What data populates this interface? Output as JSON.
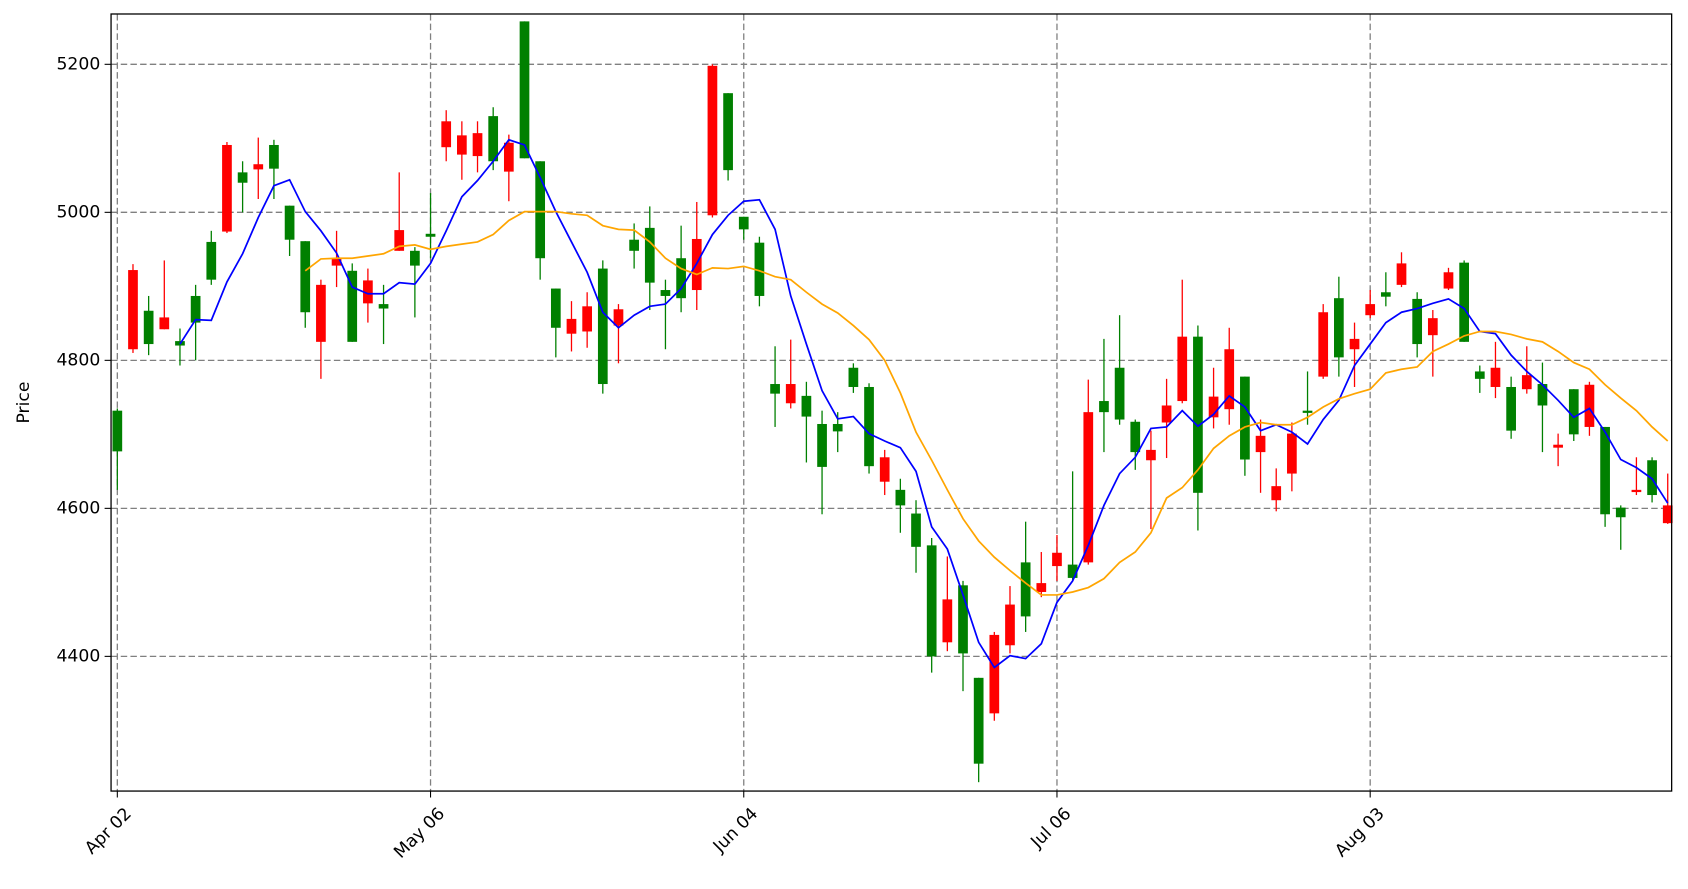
{
  "chart_data": {
    "type": "candlestick",
    "ylabel": "Price",
    "categories": [
      "Apr 02",
      null,
      null,
      null,
      null,
      null,
      null,
      null,
      null,
      null,
      null,
      null,
      null,
      null,
      null,
      null,
      null,
      null,
      null,
      null,
      "May 06",
      null,
      null,
      null,
      null,
      null,
      null,
      null,
      null,
      null,
      null,
      null,
      null,
      null,
      null,
      null,
      null,
      null,
      null,
      null,
      "Jun 04",
      null,
      null,
      null,
      null,
      null,
      null,
      null,
      null,
      null,
      null,
      null,
      null,
      null,
      null,
      null,
      null,
      null,
      null,
      null,
      "Jul 06",
      null,
      null,
      null,
      null,
      null,
      null,
      null,
      null,
      null,
      null,
      null,
      null,
      null,
      null,
      null,
      null,
      null,
      null,
      null,
      "Aug 03",
      null,
      null,
      null,
      null,
      null,
      null,
      null,
      null,
      null,
      null,
      null,
      null,
      null,
      null,
      null,
      null,
      null,
      null,
      null
    ],
    "open": [
      4732,
      4815,
      4867,
      4842,
      4826,
      4887,
      4960,
      4974,
      5054,
      5058,
      5091,
      5009,
      4961,
      4825,
      4928,
      4921,
      4877,
      4876,
      4948,
      4948,
      4971,
      5088,
      5078,
      5076,
      5130,
      5055,
      5258,
      5069,
      4897,
      4836,
      4839,
      4924,
      4847,
      4963,
      4979,
      4895,
      4938,
      4895,
      4996,
      5161,
      4994,
      4959,
      4768,
      4742,
      4752,
      4714,
      4714,
      4790,
      4764,
      4636,
      4625,
      4593,
      4550,
      4419,
      4496,
      4371,
      4323,
      4415,
      4527,
      4487,
      4522,
      4524,
      4527,
      4745,
      4790,
      4717,
      4665,
      4716,
      4745,
      4832,
      4723,
      4734,
      4778,
      4676,
      4611,
      4647,
      4732,
      4778,
      4884,
      4815,
      4861,
      4892,
      4902,
      4883,
      4834,
      4897,
      4932,
      4785,
      4764,
      4764,
      4761,
      4768,
      4682,
      4761,
      4710,
      4710,
      4601,
      4622,
      4665,
      4580
    ],
    "high": [
      4735,
      4930,
      4887,
      4935,
      4843,
      4902,
      4975,
      5095,
      5069,
      5101,
      5098,
      5009,
      4961,
      4909,
      4975,
      4931,
      4924,
      4902,
      5054,
      4953,
      5026,
      5138,
      5123,
      5123,
      5142,
      5105,
      5258,
      5069,
      4897,
      4880,
      4892,
      4935,
      4876,
      4985,
      5008,
      4909,
      4982,
      5014,
      5200,
      5161,
      4994,
      4967,
      4819,
      4828,
      4771,
      4732,
      4730,
      4796,
      4769,
      4679,
      4640,
      4611,
      4560,
      4535,
      4502,
      4371,
      4433,
      4495,
      4582,
      4541,
      4564,
      4650,
      4774,
      4829,
      4861,
      4720,
      4705,
      4775,
      4909,
      4847,
      4790,
      4844,
      4778,
      4720,
      4654,
      4716,
      4785,
      4876,
      4913,
      4851,
      4895,
      4919,
      4946,
      4892,
      4868,
      4925,
      4935,
      4793,
      4825,
      4778,
      4819,
      4797,
      4701,
      4761,
      4771,
      4710,
      4604,
      4669,
      4669,
      4647
    ],
    "low": [
      4625,
      4810,
      4807,
      4842,
      4793,
      4800,
      4902,
      4972,
      5000,
      5018,
      5018,
      4941,
      4844,
      4775,
      4899,
      4825,
      4851,
      4822,
      4948,
      4858,
      4938,
      5069,
      5044,
      5054,
      5057,
      5015,
      5073,
      4909,
      4804,
      4812,
      4817,
      4755,
      4796,
      4924,
      4868,
      4815,
      4865,
      4868,
      4993,
      5043,
      4963,
      4873,
      4710,
      4735,
      4662,
      4592,
      4676,
      4756,
      4647,
      4618,
      4567,
      4513,
      4378,
      4407,
      4353,
      4230,
      4313,
      4404,
      4433,
      4480,
      4502,
      4502,
      4524,
      4676,
      4713,
      4652,
      4572,
      4668,
      4742,
      4570,
      4708,
      4713,
      4644,
      4621,
      4596,
      4623,
      4713,
      4775,
      4778,
      4764,
      4857,
      4873,
      4899,
      4804,
      4778,
      4895,
      4825,
      4756,
      4749,
      4694,
      4755,
      4676,
      4657,
      4691,
      4698,
      4575,
      4544,
      4618,
      4608,
      4579
    ],
    "close": [
      4677,
      4922,
      4822,
      4858,
      4820,
      4851,
      4909,
      5091,
      5040,
      5065,
      5059,
      4963,
      4865,
      4902,
      4937,
      4825,
      4908,
      4870,
      4976,
      4928,
      4967,
      5123,
      5104,
      5107,
      5069,
      5094,
      5073,
      4938,
      4844,
      4856,
      4873,
      4768,
      4869,
      4948,
      4905,
      4887,
      4884,
      4964,
      5198,
      5057,
      4977,
      4887,
      4755,
      4768,
      4724,
      4656,
      4704,
      4764,
      4657,
      4669,
      4604,
      4548,
      4400,
      4477,
      4404,
      4255,
      4429,
      4470,
      4454,
      4499,
      4540,
      4506,
      4730,
      4730,
      4720,
      4676,
      4679,
      4739,
      4832,
      4621,
      4751,
      4815,
      4666,
      4698,
      4630,
      4701,
      4729,
      4865,
      4804,
      4829,
      4876,
      4886,
      4931,
      4822,
      4857,
      4919,
      4825,
      4775,
      4790,
      4705,
      4780,
      4739,
      4686,
      4700,
      4767,
      4592,
      4588,
      4625,
      4618,
      4604
    ],
    "up_color": "#ff0000",
    "down_color": "#008000",
    "lines": [
      {
        "color": "#0000ff",
        "values": [
          null,
          null,
          null,
          null,
          4822,
          4855,
          4854,
          4906,
          4944,
          4993,
          5036,
          5044,
          5001,
          4975,
          4945,
          4899,
          4890,
          4890,
          4905,
          4903,
          4931,
          4975,
          5021,
          5043,
          5069,
          5098,
          5091,
          5047,
          5001,
          4960,
          4919,
          4865,
          4844,
          4861,
          4873,
          4876,
          4897,
          4931,
          4970,
          4996,
          5015,
          5017,
          4977,
          4887,
          4822,
          4759,
          4721,
          4724,
          4701,
          4691,
          4682,
          4650,
          4575,
          4545,
          4483,
          4419,
          4385,
          4401,
          4397,
          4417,
          4473,
          4502,
          4550,
          4604,
          4647,
          4669,
          4708,
          4710,
          4732,
          4711,
          4727,
          4752,
          4737,
          4705,
          4713,
          4703,
          4687,
          4720,
          4746,
          4793,
          4822,
          4851,
          4865,
          4870,
          4877,
          4883,
          4870,
          4839,
          4836,
          4807,
          4785,
          4767,
          4746,
          4723,
          4735,
          4703,
          4666,
          4655,
          4640,
          4607
        ]
      },
      {
        "color": "#ffa500",
        "values": [
          null,
          null,
          null,
          null,
          null,
          null,
          null,
          null,
          null,
          null,
          null,
          null,
          4921,
          4937,
          4938,
          4938,
          4941,
          4944,
          4954,
          4956,
          4950,
          4954,
          4957,
          4960,
          4970,
          4989,
          5001,
          5001,
          5001,
          4998,
          4996,
          4982,
          4977,
          4976,
          4960,
          4938,
          4924,
          4916,
          4925,
          4924,
          4927,
          4921,
          4913,
          4909,
          4892,
          4876,
          4864,
          4847,
          4828,
          4800,
          4756,
          4703,
          4665,
          4625,
          4586,
          4556,
          4534,
          4516,
          4499,
          4483,
          4483,
          4487,
          4493,
          4505,
          4527,
          4541,
          4567,
          4614,
          4628,
          4652,
          4681,
          4698,
          4710,
          4716,
          4713,
          4713,
          4723,
          4737,
          4748,
          4755,
          4761,
          4783,
          4788,
          4791,
          4812,
          4822,
          4833,
          4839,
          4839,
          4835,
          4829,
          4825,
          4812,
          4797,
          4788,
          4767,
          4749,
          4732,
          4710,
          4691
        ]
      }
    ],
    "xlim": [
      -0.4,
      99.25
    ],
    "ylim": [
      4218,
      5268
    ],
    "yticks": [
      4400,
      4600,
      4800,
      5000,
      5200
    ],
    "grid": true
  }
}
